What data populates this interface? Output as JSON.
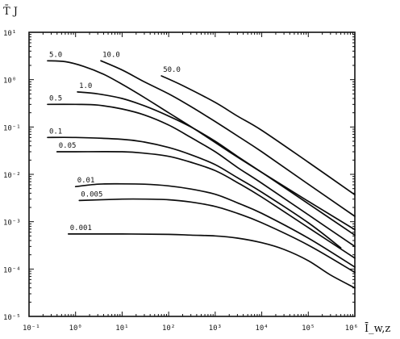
{
  "chart_data": {
    "type": "line",
    "title": "",
    "xlabel": "Ī_w,z",
    "ylabel": "T̄ J",
    "x_scale": "log",
    "y_scale": "log",
    "xlim": [
      0.1,
      1000000
    ],
    "ylim": [
      1e-05,
      10
    ],
    "grid": false,
    "legend": "none",
    "x_tick_labels": [
      "10⁻¹",
      "10⁰",
      "10¹",
      "10²",
      "10³",
      "10⁴",
      "10⁵",
      "10⁶"
    ],
    "y_tick_labels": [
      "10¹",
      "10⁰",
      "10⁻¹",
      "10⁻²",
      "10⁻³",
      "10⁻⁴",
      "10⁻⁵"
    ],
    "series": [
      {
        "label": "5.0",
        "points": [
          [
            0.25,
            2.5
          ],
          [
            0.6,
            2.4
          ],
          [
            1.5,
            1.9
          ],
          [
            4,
            1.3
          ],
          [
            10,
            0.8
          ],
          [
            30,
            0.42
          ],
          [
            100,
            0.2
          ],
          [
            400,
            0.085
          ],
          [
            2000,
            0.03
          ],
          [
            10000,
            0.011
          ],
          [
            100000,
            0.0027
          ],
          [
            1000000,
            0.00068
          ]
        ]
      },
      {
        "label": "10.0",
        "points": [
          [
            3.5,
            2.5
          ],
          [
            10,
            1.6
          ],
          [
            30,
            0.9
          ],
          [
            100,
            0.5
          ],
          [
            300,
            0.27
          ],
          [
            1000,
            0.13
          ],
          [
            3000,
            0.065
          ],
          [
            10000,
            0.03
          ],
          [
            100000,
            0.0062
          ],
          [
            1000000,
            0.0013
          ]
        ]
      },
      {
        "label": "50.0",
        "points": [
          [
            70,
            1.2
          ],
          [
            200,
            0.75
          ],
          [
            1000,
            0.33
          ],
          [
            3000,
            0.17
          ],
          [
            10000,
            0.085
          ],
          [
            100000,
            0.018
          ],
          [
            1000000,
            0.0037
          ]
        ]
      },
      {
        "label": "1.0",
        "points": [
          [
            1.1,
            0.55
          ],
          [
            3,
            0.5
          ],
          [
            10,
            0.4
          ],
          [
            30,
            0.28
          ],
          [
            100,
            0.17
          ],
          [
            300,
            0.1
          ],
          [
            1000,
            0.05
          ],
          [
            3000,
            0.024
          ],
          [
            10000,
            0.011
          ],
          [
            100000,
            0.0024
          ],
          [
            1000000,
            0.00052
          ]
        ]
      },
      {
        "label": "0.5",
        "points": [
          [
            0.25,
            0.3
          ],
          [
            1,
            0.3
          ],
          [
            3,
            0.29
          ],
          [
            10,
            0.24
          ],
          [
            30,
            0.18
          ],
          [
            100,
            0.11
          ],
          [
            300,
            0.06
          ],
          [
            1000,
            0.03
          ],
          [
            3000,
            0.014
          ],
          [
            10000,
            0.0065
          ],
          [
            100000,
            0.0014
          ],
          [
            1000000,
            0.0003
          ]
        ]
      },
      {
        "label": "0.1",
        "points": [
          [
            0.25,
            0.06
          ],
          [
            1,
            0.06
          ],
          [
            10,
            0.055
          ],
          [
            30,
            0.048
          ],
          [
            100,
            0.037
          ],
          [
            300,
            0.026
          ],
          [
            1000,
            0.016
          ],
          [
            3000,
            0.0085
          ],
          [
            10000,
            0.0042
          ],
          [
            100000,
            0.00095
          ],
          [
            500000,
            0.00028
          ]
        ]
      },
      {
        "label": "0.05",
        "points": [
          [
            0.4,
            0.03
          ],
          [
            1,
            0.03
          ],
          [
            10,
            0.03
          ],
          [
            30,
            0.028
          ],
          [
            100,
            0.024
          ],
          [
            300,
            0.018
          ],
          [
            1000,
            0.012
          ],
          [
            3000,
            0.0067
          ],
          [
            10000,
            0.0033
          ],
          [
            100000,
            0.00075
          ],
          [
            1000000,
            0.00017
          ]
        ]
      },
      {
        "label": "0.01",
        "points": [
          [
            1.0,
            0.0055
          ],
          [
            3,
            0.0062
          ],
          [
            10,
            0.0063
          ],
          [
            30,
            0.0062
          ],
          [
            100,
            0.0057
          ],
          [
            300,
            0.0049
          ],
          [
            1000,
            0.0038
          ],
          [
            3000,
            0.0025
          ],
          [
            10000,
            0.0015
          ],
          [
            100000,
            0.00045
          ],
          [
            1000000,
            0.00011
          ]
        ]
      },
      {
        "label": "0.005",
        "points": [
          [
            1.2,
            0.0028
          ],
          [
            10,
            0.003
          ],
          [
            30,
            0.003
          ],
          [
            100,
            0.0029
          ],
          [
            300,
            0.0026
          ],
          [
            1000,
            0.0021
          ],
          [
            3000,
            0.0015
          ],
          [
            10000,
            0.00095
          ],
          [
            100000,
            0.00032
          ],
          [
            1000000,
            8.5e-05
          ]
        ]
      },
      {
        "label": "0.001",
        "points": [
          [
            0.7,
            0.00055
          ],
          [
            10,
            0.00055
          ],
          [
            100,
            0.00054
          ],
          [
            300,
            0.00052
          ],
          [
            1000,
            0.0005
          ],
          [
            3000,
            0.00045
          ],
          [
            10000,
            0.00036
          ],
          [
            30000,
            0.00026
          ],
          [
            100000,
            0.00015
          ],
          [
            300000,
            7.5e-05
          ],
          [
            1000000,
            4e-05
          ]
        ]
      }
    ]
  }
}
